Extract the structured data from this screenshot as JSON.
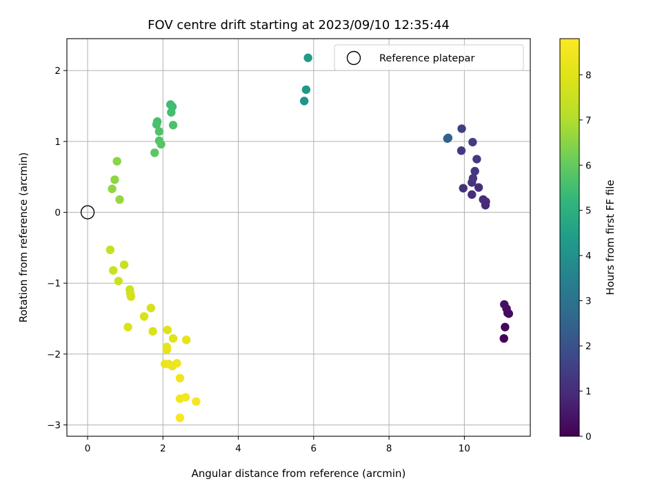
{
  "chart_data": {
    "type": "scatter",
    "title": "FOV centre drift starting at 2023/09/10 12:35:44",
    "xlabel": "Angular distance from reference (arcmin)",
    "ylabel": "Rotation from reference (arcmin)",
    "xlim": [
      -0.55,
      11.75
    ],
    "ylim": [
      -3.16,
      2.45
    ],
    "xticks": [
      0,
      2,
      4,
      6,
      8,
      10
    ],
    "yticks": [
      -3,
      -2,
      -1,
      0,
      1,
      2
    ],
    "grid": true,
    "legend": {
      "placement": "top-right",
      "entries": [
        "Reference platepar"
      ]
    },
    "reference_point": {
      "x": 0,
      "y": 0,
      "label": "Reference platepar"
    },
    "colorbar": {
      "label": "Hours from first FF file",
      "min": 0,
      "max": 8.8,
      "ticks": [
        0,
        1,
        2,
        3,
        4,
        5,
        6,
        7,
        8
      ],
      "colormap": "viridis"
    },
    "points": [
      {
        "x": 11.05,
        "y": -1.78,
        "c": 0.1
      },
      {
        "x": 11.08,
        "y": -1.62,
        "c": 0.15
      },
      {
        "x": 11.15,
        "y": -1.42,
        "c": 0.2
      },
      {
        "x": 11.18,
        "y": -1.43,
        "c": 0.25
      },
      {
        "x": 11.12,
        "y": -1.36,
        "c": 0.3
      },
      {
        "x": 11.06,
        "y": -1.3,
        "c": 0.35
      },
      {
        "x": 10.56,
        "y": 0.1,
        "c": 0.9
      },
      {
        "x": 10.57,
        "y": 0.15,
        "c": 0.95
      },
      {
        "x": 10.5,
        "y": 0.18,
        "c": 1.0
      },
      {
        "x": 10.38,
        "y": 0.35,
        "c": 1.05
      },
      {
        "x": 10.2,
        "y": 0.25,
        "c": 1.1
      },
      {
        "x": 9.97,
        "y": 0.34,
        "c": 1.15
      },
      {
        "x": 10.2,
        "y": 0.42,
        "c": 1.2
      },
      {
        "x": 10.23,
        "y": 0.48,
        "c": 1.25
      },
      {
        "x": 10.28,
        "y": 0.58,
        "c": 1.3
      },
      {
        "x": 10.33,
        "y": 0.75,
        "c": 1.35
      },
      {
        "x": 9.92,
        "y": 0.87,
        "c": 1.4
      },
      {
        "x": 10.22,
        "y": 0.99,
        "c": 1.45
      },
      {
        "x": 9.93,
        "y": 1.18,
        "c": 1.5
      },
      {
        "x": 9.55,
        "y": 1.04,
        "c": 2.4
      },
      {
        "x": 9.57,
        "y": 1.05,
        "c": 2.5
      },
      {
        "x": 5.75,
        "y": 1.57,
        "c": 4.1
      },
      {
        "x": 5.8,
        "y": 1.73,
        "c": 4.2
      },
      {
        "x": 5.85,
        "y": 2.18,
        "c": 4.3
      },
      {
        "x": 2.2,
        "y": 1.52,
        "c": 5.4
      },
      {
        "x": 2.25,
        "y": 1.49,
        "c": 5.45
      },
      {
        "x": 2.22,
        "y": 1.41,
        "c": 5.5
      },
      {
        "x": 1.85,
        "y": 1.28,
        "c": 5.55
      },
      {
        "x": 1.83,
        "y": 1.24,
        "c": 5.6
      },
      {
        "x": 2.27,
        "y": 1.23,
        "c": 5.65
      },
      {
        "x": 1.9,
        "y": 1.14,
        "c": 5.7
      },
      {
        "x": 1.9,
        "y": 1.01,
        "c": 5.75
      },
      {
        "x": 1.95,
        "y": 0.96,
        "c": 5.8
      },
      {
        "x": 1.78,
        "y": 0.84,
        "c": 5.85
      },
      {
        "x": 0.78,
        "y": 0.72,
        "c": 6.5
      },
      {
        "x": 0.72,
        "y": 0.46,
        "c": 6.55
      },
      {
        "x": 0.65,
        "y": 0.33,
        "c": 6.6
      },
      {
        "x": 0.85,
        "y": 0.18,
        "c": 6.65
      },
      {
        "x": 0.6,
        "y": -0.53,
        "c": 7.4
      },
      {
        "x": 0.97,
        "y": -0.74,
        "c": 7.45
      },
      {
        "x": 0.68,
        "y": -0.82,
        "c": 7.5
      },
      {
        "x": 0.82,
        "y": -0.97,
        "c": 7.55
      },
      {
        "x": 1.12,
        "y": -1.09,
        "c": 7.6
      },
      {
        "x": 1.13,
        "y": -1.14,
        "c": 7.65
      },
      {
        "x": 1.15,
        "y": -1.19,
        "c": 7.7
      },
      {
        "x": 1.68,
        "y": -1.35,
        "c": 7.75
      },
      {
        "x": 1.5,
        "y": -1.47,
        "c": 7.8
      },
      {
        "x": 1.07,
        "y": -1.62,
        "c": 7.85
      },
      {
        "x": 1.73,
        "y": -1.68,
        "c": 7.9
      },
      {
        "x": 2.12,
        "y": -1.66,
        "c": 8.0
      },
      {
        "x": 2.27,
        "y": -1.78,
        "c": 8.05
      },
      {
        "x": 2.62,
        "y": -1.8,
        "c": 8.1
      },
      {
        "x": 2.1,
        "y": -1.9,
        "c": 8.15
      },
      {
        "x": 2.1,
        "y": -1.94,
        "c": 8.2
      },
      {
        "x": 2.05,
        "y": -2.14,
        "c": 8.25
      },
      {
        "x": 2.15,
        "y": -2.14,
        "c": 8.3
      },
      {
        "x": 2.25,
        "y": -2.17,
        "c": 8.35
      },
      {
        "x": 2.37,
        "y": -2.13,
        "c": 8.4
      },
      {
        "x": 2.45,
        "y": -2.34,
        "c": 8.45
      },
      {
        "x": 2.45,
        "y": -2.63,
        "c": 8.5
      },
      {
        "x": 2.6,
        "y": -2.61,
        "c": 8.55
      },
      {
        "x": 2.88,
        "y": -2.67,
        "c": 8.6
      },
      {
        "x": 2.45,
        "y": -2.9,
        "c": 8.65
      }
    ]
  }
}
